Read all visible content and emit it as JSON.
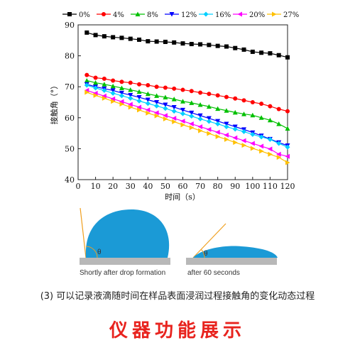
{
  "chart_data": {
    "type": "line",
    "ylabel": "接触角（°）",
    "xlabel": "时间（s）",
    "xlim": [
      0,
      120
    ],
    "ylim": [
      40,
      90
    ],
    "xticks": [
      0,
      10,
      20,
      30,
      40,
      50,
      60,
      70,
      80,
      90,
      100,
      110,
      120
    ],
    "yticks": [
      40,
      50,
      60,
      70,
      80,
      90
    ],
    "legend_position": "top",
    "x": [
      5,
      10,
      15,
      20,
      25,
      30,
      35,
      40,
      45,
      50,
      55,
      60,
      65,
      70,
      75,
      80,
      85,
      90,
      95,
      100,
      105,
      110,
      115,
      120
    ],
    "series": [
      {
        "name": "0%",
        "color": "#000000",
        "marker": "square",
        "values": [
          87.5,
          86.7,
          86.3,
          86.0,
          85.8,
          85.5,
          85.2,
          84.7,
          84.6,
          84.5,
          84.3,
          84.0,
          83.8,
          83.7,
          83.5,
          83.2,
          83.0,
          82.5,
          82.0,
          81.3,
          81.0,
          80.8,
          80.2,
          79.5
        ]
      },
      {
        "name": "4%",
        "color": "#ff0000",
        "marker": "circle",
        "values": [
          73.8,
          72.9,
          72.6,
          72.0,
          71.6,
          71.3,
          70.8,
          70.5,
          70.0,
          69.7,
          69.4,
          69.0,
          68.6,
          68.1,
          67.7,
          67.2,
          66.7,
          66.2,
          65.6,
          65.0,
          64.5,
          63.7,
          62.8,
          62.1
        ]
      },
      {
        "name": "8%",
        "color": "#00c000",
        "marker": "triangle-up",
        "values": [
          72.0,
          71.3,
          70.8,
          70.2,
          69.6,
          69.0,
          68.4,
          67.7,
          67.1,
          66.6,
          66.0,
          65.3,
          64.8,
          64.2,
          63.6,
          62.9,
          62.3,
          61.7,
          61.2,
          60.8,
          60.0,
          59.2,
          58.0,
          56.5
        ]
      },
      {
        "name": "12%",
        "color": "#0000ff",
        "marker": "triangle-down",
        "values": [
          70.8,
          70.0,
          69.4,
          68.8,
          68.0,
          67.3,
          66.6,
          65.8,
          65.0,
          64.2,
          63.4,
          62.5,
          61.6,
          60.7,
          59.8,
          58.9,
          58.0,
          57.1,
          56.2,
          55.2,
          54.2,
          53.1,
          52.0,
          51.0
        ]
      },
      {
        "name": "16%",
        "color": "#00d0ff",
        "marker": "diamond",
        "values": [
          70.5,
          69.6,
          68.8,
          67.9,
          67.1,
          66.3,
          65.4,
          64.6,
          63.8,
          63.0,
          62.1,
          61.3,
          60.5,
          59.6,
          58.8,
          58.0,
          57.1,
          56.3,
          55.5,
          54.6,
          53.8,
          53.0,
          51.7,
          50.5
        ]
      },
      {
        "name": "20%",
        "color": "#ff00ff",
        "marker": "triangle-left",
        "values": [
          68.8,
          67.9,
          67.0,
          66.1,
          65.2,
          64.3,
          63.4,
          62.5,
          61.6,
          60.7,
          59.8,
          58.9,
          58.0,
          57.1,
          56.2,
          55.3,
          54.4,
          53.5,
          52.6,
          51.7,
          50.8,
          49.9,
          48.2,
          47.5
        ]
      },
      {
        "name": "27%",
        "color": "#ffc000",
        "marker": "triangle-right",
        "values": [
          68.2,
          67.2,
          66.3,
          65.3,
          64.4,
          63.4,
          62.5,
          61.5,
          60.6,
          59.6,
          58.7,
          57.7,
          56.8,
          55.8,
          54.9,
          53.9,
          53.0,
          52.0,
          51.1,
          50.1,
          49.2,
          48.2,
          47.2,
          45.5
        ]
      }
    ]
  },
  "diagram": {
    "left_caption": "Shortly after drop formation",
    "right_caption": "after 60 seconds",
    "angle_symbol": "θ",
    "drop_color": "#1b9ad6",
    "surface_color": "#b8b8b8",
    "tangent_color": "#f0a020"
  },
  "caption": "(3) 可以记录液滴随时间在样品表面浸润过程接触角的变化动态过程",
  "banner": "仪器功能展示"
}
